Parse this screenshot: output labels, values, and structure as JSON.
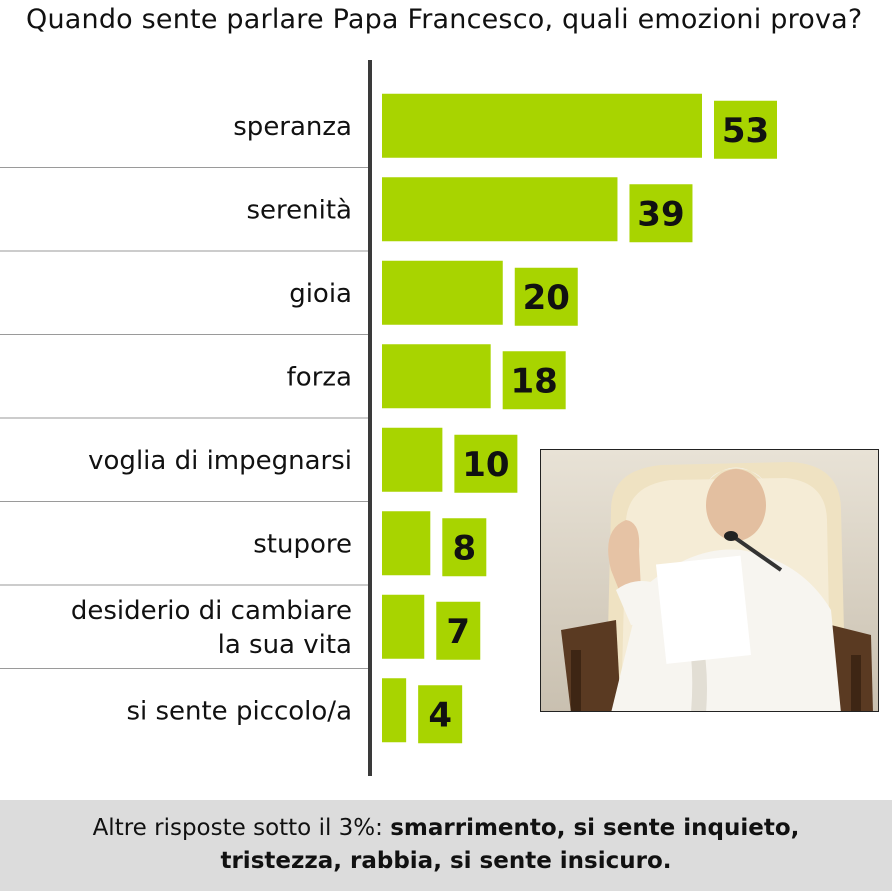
{
  "chart_data": {
    "type": "bar",
    "title": "Quando sente parlare Papa Francesco, quali emozioni prova?",
    "orientation": "horizontal",
    "categories": [
      [
        "speranza"
      ],
      [
        "serenità"
      ],
      [
        "gioia"
      ],
      [
        "forza"
      ],
      [
        "voglia di impegnarsi"
      ],
      [
        "stupore"
      ],
      [
        "desiderio di cambiare",
        "la sua vita"
      ],
      [
        "si sente piccolo/a"
      ]
    ],
    "values": [
      53,
      39,
      20,
      18,
      10,
      8,
      7,
      4
    ],
    "value_labels": [
      "53",
      "39",
      "20",
      "18",
      "10",
      "8",
      "7",
      "4"
    ],
    "xlim": [
      0,
      60
    ],
    "grid": false,
    "colors": {
      "bar": "#a8d400",
      "axis": "#3a3a3a",
      "separator": "#9a9a9a"
    }
  },
  "photo": {
    "icon": "pope-photo"
  },
  "footnote": {
    "prefix": "Altre risposte sotto il 3%: ",
    "line1_bold": "smarrimento, si sente inquieto,",
    "line2_bold": "tristezza, rabbia, si sente insicuro."
  }
}
